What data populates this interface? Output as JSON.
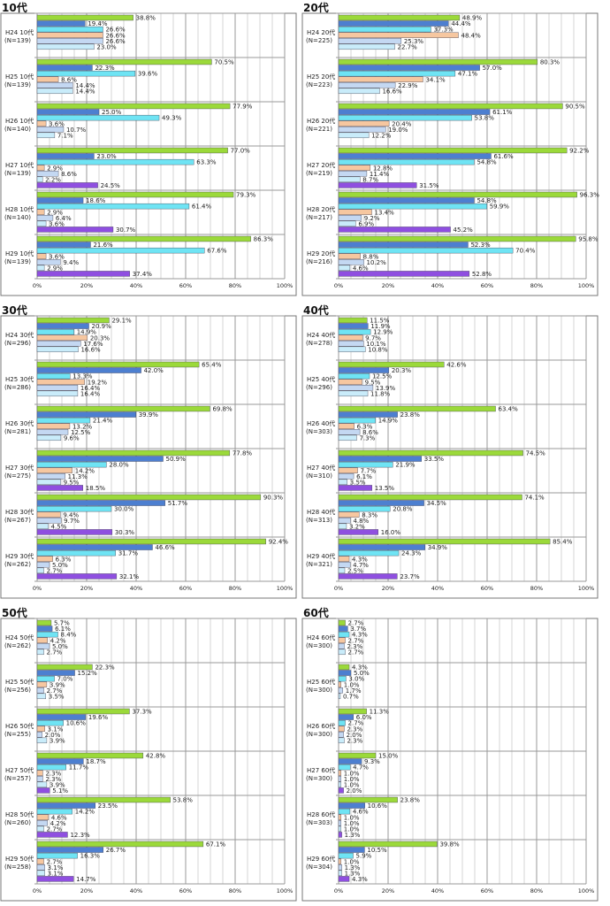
{
  "series_colors": [
    "#9bd93a",
    "#4d7fd0",
    "#6fe4f4",
    "#f6c7a0",
    "#c4d8f2",
    "#c9ecfa",
    "#8f4fe0"
  ],
  "chart_data": [
    {
      "type": "bar",
      "title": "10代",
      "xlim": [
        0,
        100
      ],
      "x_ticks": [
        "0%",
        "20%",
        "40%",
        "60%",
        "80%",
        "100%"
      ],
      "categories": [
        {
          "label": "H24 10代",
          "n": "(N=139)",
          "values": [
            38.8,
            19.4,
            26.6,
            26.6,
            26.6,
            23.0
          ]
        },
        {
          "label": "H25 10代",
          "n": "(N=139)",
          "values": [
            70.5,
            22.3,
            39.6,
            8.6,
            14.4,
            14.4
          ]
        },
        {
          "label": "H26 10代",
          "n": "(N=140)",
          "values": [
            77.9,
            25.0,
            49.3,
            3.6,
            10.7,
            7.1
          ]
        },
        {
          "label": "H27 10代",
          "n": "(N=139)",
          "values": [
            77.0,
            23.0,
            63.3,
            2.9,
            8.6,
            2.2,
            24.5
          ]
        },
        {
          "label": "H28 10代",
          "n": "(N=140)",
          "values": [
            79.3,
            18.6,
            61.4,
            2.9,
            6.4,
            3.6,
            30.7
          ]
        },
        {
          "label": "H29 10代",
          "n": "(N=139)",
          "values": [
            86.3,
            21.6,
            67.6,
            3.6,
            9.4,
            2.9,
            37.4
          ]
        }
      ]
    },
    {
      "type": "bar",
      "title": "20代",
      "xlim": [
        0,
        100
      ],
      "x_ticks": [
        "0%",
        "20%",
        "40%",
        "60%",
        "80%",
        "100%"
      ],
      "categories": [
        {
          "label": "H24 20代",
          "n": "(N=225)",
          "values": [
            48.9,
            44.4,
            37.3,
            48.4,
            25.3,
            22.7
          ]
        },
        {
          "label": "H25 20代",
          "n": "(N=223)",
          "values": [
            80.3,
            57.0,
            47.1,
            34.1,
            22.9,
            16.6
          ]
        },
        {
          "label": "H26 20代",
          "n": "(N=221)",
          "values": [
            90.5,
            61.1,
            53.8,
            20.4,
            19.0,
            12.2
          ]
        },
        {
          "label": "H27 20代",
          "n": "(N=219)",
          "values": [
            92.2,
            61.6,
            54.8,
            12.8,
            11.4,
            8.7,
            31.5
          ]
        },
        {
          "label": "H28 20代",
          "n": "(N=217)",
          "values": [
            96.3,
            54.8,
            59.9,
            13.4,
            9.2,
            6.9,
            45.2
          ]
        },
        {
          "label": "H29 20代",
          "n": "(N=216)",
          "values": [
            95.8,
            52.3,
            70.4,
            8.8,
            10.2,
            4.6,
            52.8
          ]
        }
      ]
    },
    {
      "type": "bar",
      "title": "30代",
      "xlim": [
        0,
        100
      ],
      "x_ticks": [
        "0%",
        "20%",
        "40%",
        "60%",
        "80%",
        "100%"
      ],
      "categories": [
        {
          "label": "H24 30代",
          "n": "(N=296)",
          "values": [
            29.1,
            20.9,
            14.9,
            20.3,
            17.6,
            16.6
          ]
        },
        {
          "label": "H25 30代",
          "n": "(N=286)",
          "values": [
            65.4,
            42.0,
            13.3,
            19.2,
            16.4,
            16.4
          ]
        },
        {
          "label": "H26 30代",
          "n": "(N=281)",
          "values": [
            69.8,
            39.9,
            21.4,
            13.2,
            12.5,
            9.6
          ]
        },
        {
          "label": "H27 30代",
          "n": "(N=275)",
          "values": [
            77.8,
            50.9,
            28.0,
            14.2,
            11.3,
            9.5,
            18.5
          ]
        },
        {
          "label": "H28 30代",
          "n": "(N=267)",
          "values": [
            90.3,
            51.7,
            30.0,
            9.4,
            9.7,
            4.5,
            30.3
          ]
        },
        {
          "label": "H29 30代",
          "n": "(N=262)",
          "values": [
            92.4,
            46.6,
            31.7,
            6.3,
            5.0,
            2.7,
            32.1
          ]
        }
      ]
    },
    {
      "type": "bar",
      "title": "40代",
      "xlim": [
        0,
        100
      ],
      "x_ticks": [
        "0%",
        "20%",
        "40%",
        "60%",
        "80%",
        "100%"
      ],
      "categories": [
        {
          "label": "H24 40代",
          "n": "(N=278)",
          "values": [
            11.5,
            11.9,
            12.9,
            9.7,
            10.1,
            10.8
          ]
        },
        {
          "label": "H25 40代",
          "n": "(N=296)",
          "values": [
            42.6,
            20.3,
            12.5,
            9.5,
            13.9,
            11.8
          ]
        },
        {
          "label": "H26 40代",
          "n": "(N=303)",
          "values": [
            63.4,
            23.8,
            14.9,
            6.3,
            8.6,
            7.3
          ]
        },
        {
          "label": "H27 40代",
          "n": "(N=310)",
          "values": [
            74.5,
            33.5,
            21.9,
            7.7,
            6.1,
            3.5,
            13.5
          ]
        },
        {
          "label": "H28 40代",
          "n": "(N=313)",
          "values": [
            74.1,
            34.5,
            20.8,
            8.3,
            4.8,
            3.2,
            16.0
          ]
        },
        {
          "label": "H29 40代",
          "n": "(N=321)",
          "values": [
            85.4,
            34.9,
            24.3,
            4.3,
            4.7,
            2.5,
            23.7
          ]
        }
      ]
    },
    {
      "type": "bar",
      "title": "50代",
      "xlim": [
        0,
        100
      ],
      "x_ticks": [
        "0%",
        "20%",
        "40%",
        "60%",
        "80%",
        "100%"
      ],
      "categories": [
        {
          "label": "H24 50代",
          "n": "(N=262)",
          "values": [
            5.7,
            6.1,
            8.4,
            4.2,
            5.0,
            2.7
          ]
        },
        {
          "label": "H25 50代",
          "n": "(N=256)",
          "values": [
            22.3,
            15.2,
            7.0,
            3.9,
            2.7,
            3.5
          ]
        },
        {
          "label": "H26 50代",
          "n": "(N=255)",
          "values": [
            37.3,
            19.6,
            10.6,
            3.1,
            2.0,
            3.9
          ]
        },
        {
          "label": "H27 50代",
          "n": "(N=257)",
          "values": [
            42.8,
            18.7,
            11.7,
            2.3,
            2.3,
            3.9,
            5.1
          ]
        },
        {
          "label": "H28 50代",
          "n": "(N=260)",
          "values": [
            53.8,
            23.5,
            14.2,
            4.6,
            4.2,
            2.7,
            12.3
          ]
        },
        {
          "label": "H29 50代",
          "n": "(N=258)",
          "values": [
            67.1,
            26.7,
            16.3,
            2.7,
            3.1,
            3.1,
            14.7
          ]
        }
      ]
    },
    {
      "type": "bar",
      "title": "60代",
      "xlim": [
        0,
        100
      ],
      "x_ticks": [
        "0%",
        "20%",
        "40%",
        "60%",
        "80%",
        "100%"
      ],
      "categories": [
        {
          "label": "H24 60代",
          "n": "(N=300)",
          "values": [
            2.7,
            3.7,
            4.3,
            2.7,
            2.3,
            2.7
          ]
        },
        {
          "label": "H25 60代",
          "n": "(N=300)",
          "values": [
            4.3,
            5.0,
            3.0,
            1.0,
            1.7,
            0.7
          ]
        },
        {
          "label": "H26 60代",
          "n": "(N=300)",
          "values": [
            11.3,
            6.0,
            2.7,
            2.3,
            2.0,
            2.3
          ]
        },
        {
          "label": "H27 60代",
          "n": "(N=300)",
          "values": [
            15.0,
            9.3,
            4.7,
            1.0,
            1.0,
            1.0,
            2.0
          ]
        },
        {
          "label": "H28 60代",
          "n": "(N=303)",
          "values": [
            23.8,
            10.6,
            4.6,
            1.0,
            1.0,
            1.0,
            1.3
          ]
        },
        {
          "label": "H29 60代",
          "n": "(N=304)",
          "values": [
            39.8,
            10.5,
            5.9,
            1.0,
            1.3,
            1.3,
            4.3
          ]
        }
      ]
    }
  ]
}
